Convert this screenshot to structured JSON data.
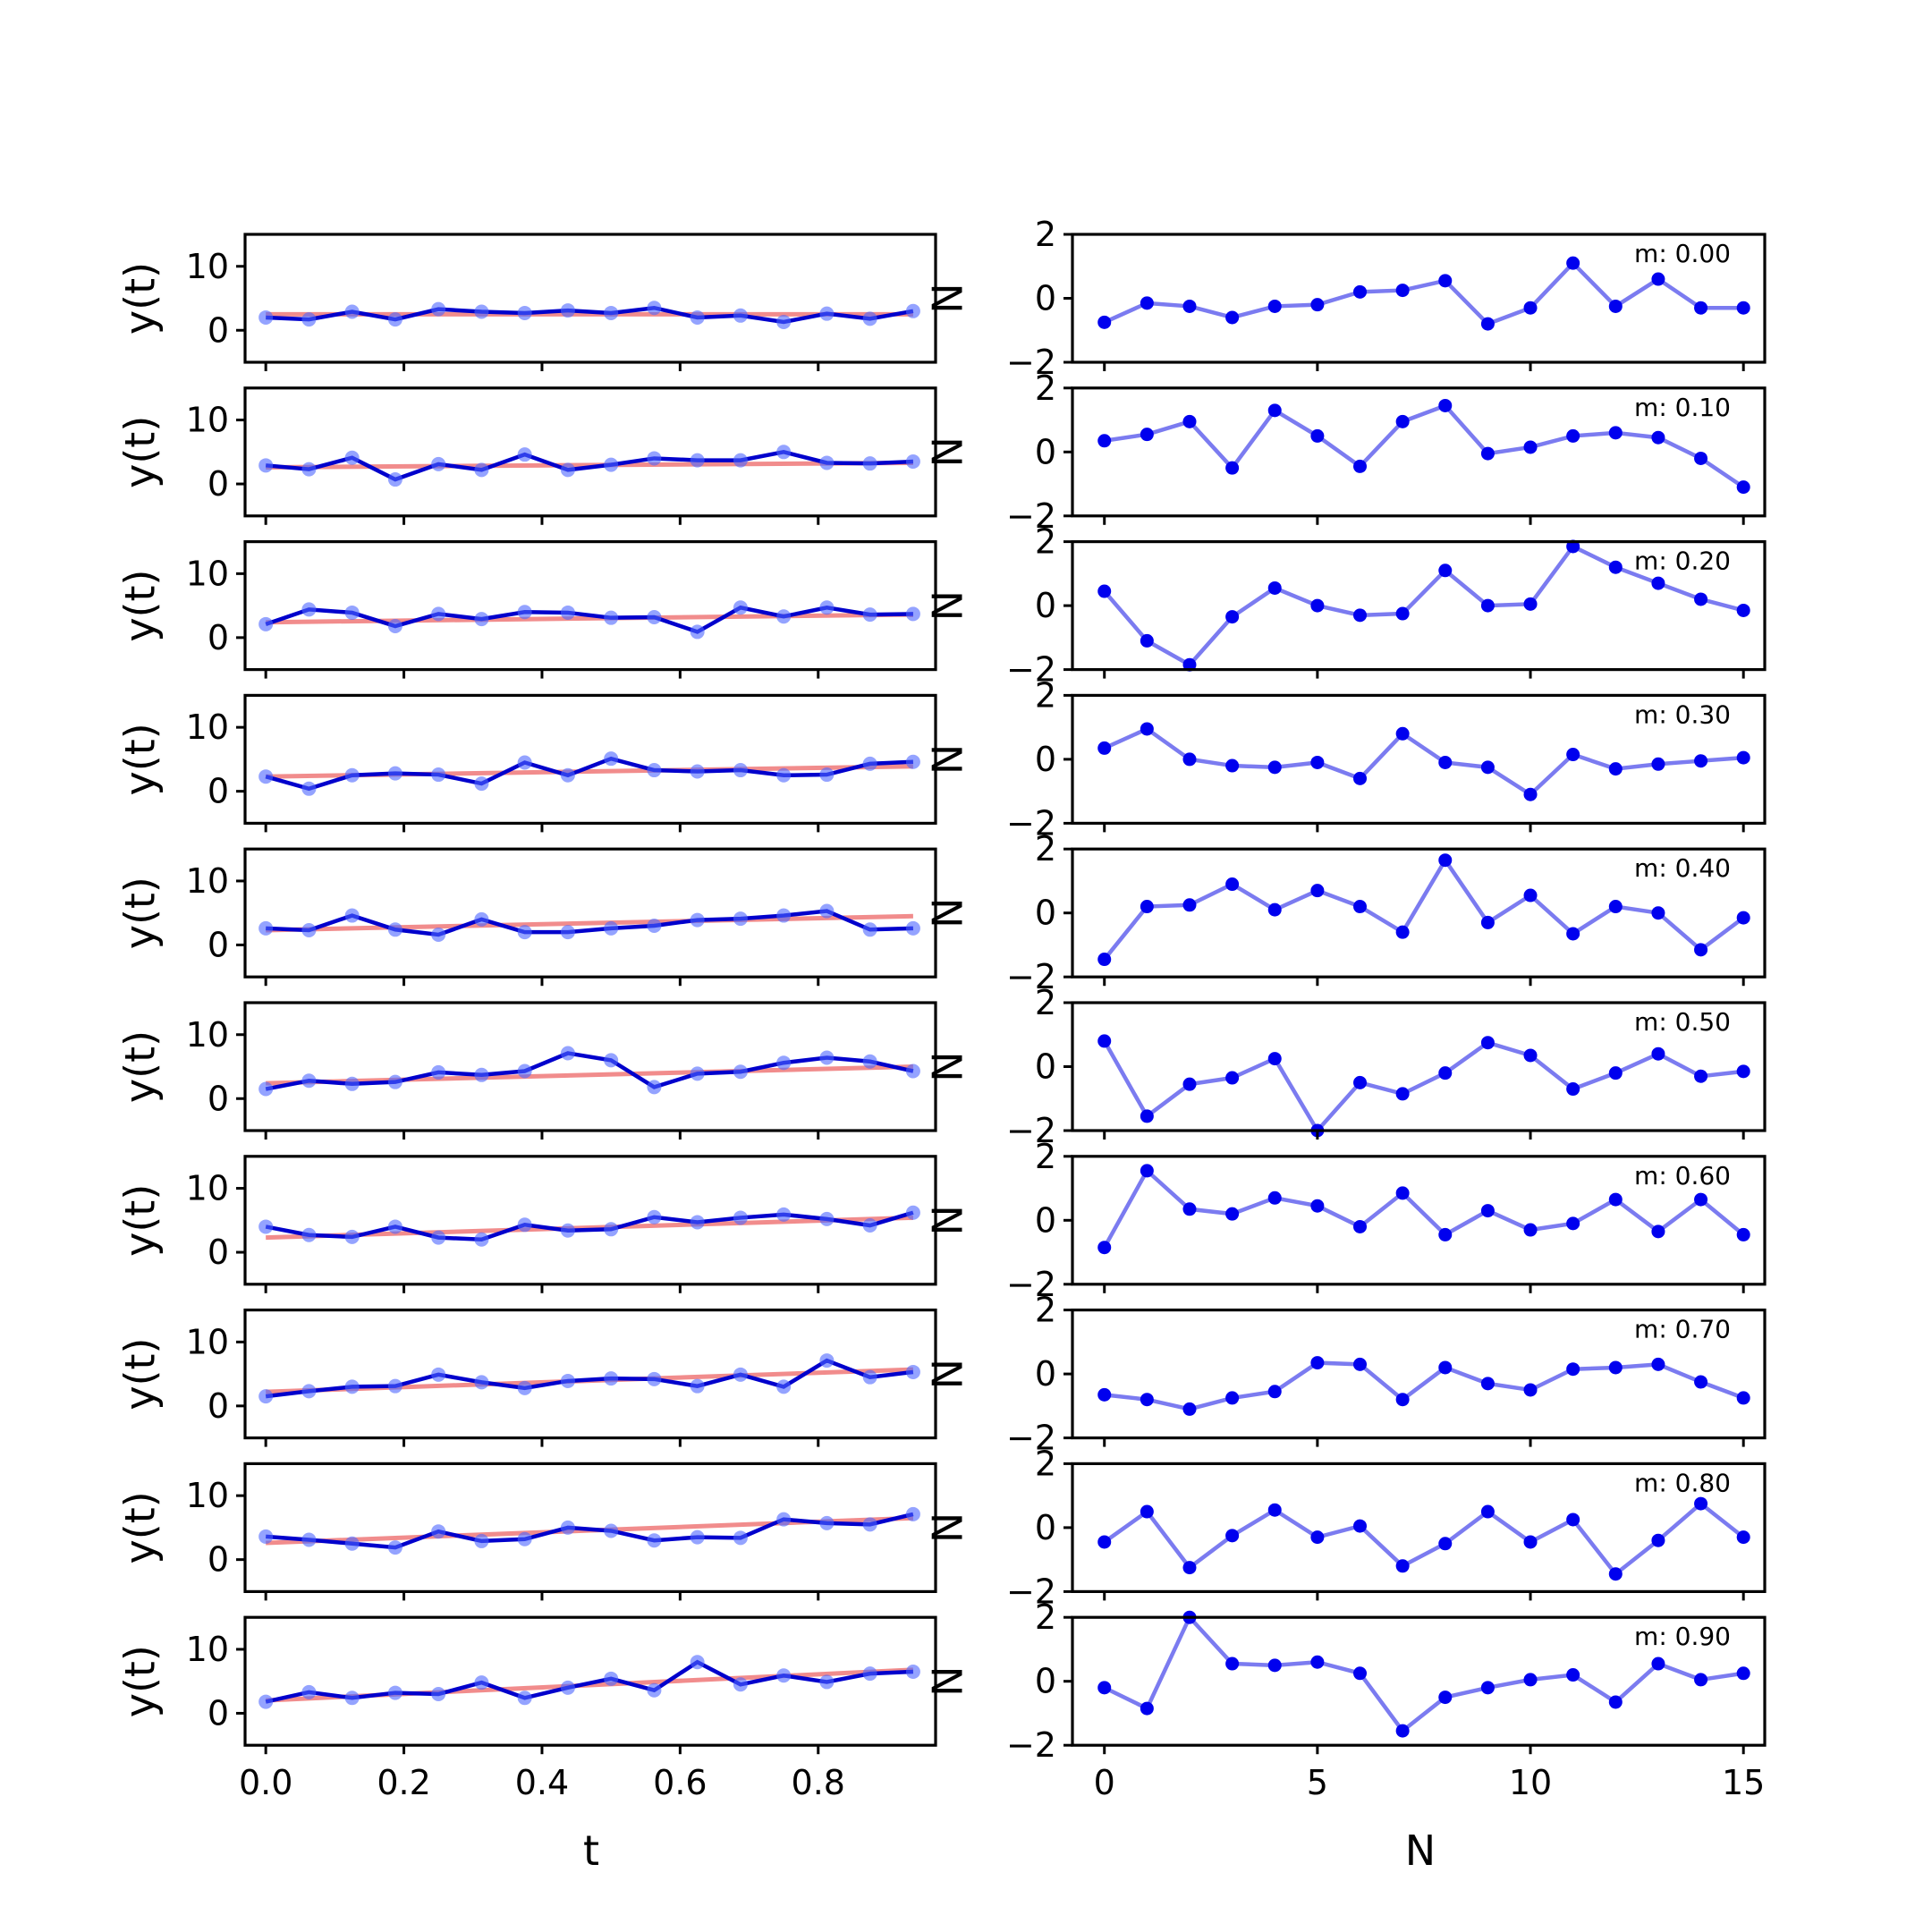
{
  "chart_data": [
    {
      "panel": "left",
      "type": "line",
      "xlabel": "t",
      "ylabel": "y(t)",
      "ylim": [
        -5,
        15
      ],
      "yticks": [
        "0",
        "10"
      ],
      "xlim": [
        -0.03,
        0.97
      ],
      "xticks": [
        "0.0",
        "0.2",
        "0.4",
        "0.6",
        "0.8"
      ],
      "x": [
        0.0,
        0.0625,
        0.125,
        0.1875,
        0.25,
        0.3125,
        0.375,
        0.4375,
        0.5,
        0.5625,
        0.625,
        0.6875,
        0.75,
        0.8125,
        0.875,
        0.9375
      ],
      "colors": {
        "data": "#0000cc",
        "markers": "#4d66ff",
        "fit": "#f08080"
      },
      "rows": [
        {
          "y": [
            2.0,
            1.7,
            2.9,
            1.7,
            3.3,
            2.9,
            2.7,
            3.1,
            2.7,
            3.5,
            2.0,
            2.3,
            1.3,
            2.6,
            1.8,
            3.0
          ],
          "fit": [
            2.5,
            2.5
          ]
        },
        {
          "y": [
            2.9,
            2.3,
            4.1,
            0.7,
            3.1,
            2.2,
            4.6,
            2.2,
            3.0,
            4.0,
            3.7,
            3.7,
            5.0,
            3.3,
            3.2,
            3.5
          ],
          "fit": [
            2.6,
            3.3
          ]
        },
        {
          "y": [
            2.1,
            4.4,
            3.9,
            1.8,
            3.7,
            2.9,
            4.0,
            3.9,
            3.1,
            3.2,
            0.9,
            4.7,
            3.3,
            4.7,
            3.6,
            3.7
          ],
          "fit": [
            2.4,
            3.6
          ]
        },
        {
          "y": [
            2.3,
            0.4,
            2.5,
            2.8,
            2.6,
            1.2,
            4.5,
            2.5,
            5.1,
            3.3,
            3.1,
            3.3,
            2.5,
            2.6,
            4.3,
            4.6
          ],
          "fit": [
            2.3,
            3.9
          ]
        },
        {
          "y": [
            2.6,
            2.3,
            4.6,
            2.4,
            1.6,
            4.0,
            2.0,
            2.0,
            2.6,
            3.0,
            3.9,
            4.1,
            4.6,
            5.3,
            2.4,
            2.6
          ],
          "fit": [
            2.3,
            4.5
          ]
        },
        {
          "y": [
            1.5,
            2.8,
            2.3,
            2.6,
            4.1,
            3.7,
            4.3,
            7.1,
            6.0,
            1.8,
            3.9,
            4.2,
            5.6,
            6.4,
            5.8,
            4.3
          ],
          "fit": [
            2.4,
            5.0
          ]
        },
        {
          "y": [
            4.0,
            2.7,
            2.4,
            4.0,
            2.3,
            2.0,
            4.3,
            3.4,
            3.6,
            5.5,
            4.7,
            5.4,
            5.9,
            5.2,
            4.2,
            6.2
          ],
          "fit": [
            2.3,
            5.4
          ]
        },
        {
          "y": [
            1.5,
            2.3,
            3.0,
            3.1,
            4.9,
            3.7,
            2.8,
            3.9,
            4.3,
            4.2,
            3.1,
            4.9,
            3.0,
            7.1,
            4.5,
            5.3
          ],
          "fit": [
            2.2,
            5.7
          ]
        },
        {
          "y": [
            3.6,
            3.1,
            2.5,
            1.9,
            4.4,
            2.9,
            3.2,
            5.0,
            4.5,
            3.0,
            3.5,
            3.4,
            6.3,
            5.7,
            5.5,
            7.1
          ],
          "fit": [
            2.6,
            6.5
          ]
        },
        {
          "y": [
            1.8,
            3.3,
            2.4,
            3.2,
            3.0,
            4.8,
            2.4,
            4.0,
            5.4,
            3.6,
            8.0,
            4.5,
            5.9,
            4.9,
            6.2,
            6.5
          ],
          "fit": [
            2.0,
            6.8
          ]
        }
      ],
      "stray_text": "N"
    },
    {
      "panel": "right",
      "type": "line",
      "xlabel": "N",
      "ylim": [
        -2,
        2
      ],
      "yticks": [
        "2",
        "0",
        "−2"
      ],
      "xlim": [
        -0.75,
        15.5
      ],
      "xticks": [
        "0",
        "5",
        "10",
        "15"
      ],
      "x": [
        0,
        1,
        2,
        3,
        4,
        5,
        6,
        7,
        8,
        9,
        10,
        11,
        12,
        13,
        14,
        15
      ],
      "colors": {
        "line": "#7b7bf0",
        "markers": "#0000ee"
      },
      "rows": [
        {
          "label": "m: 0.00",
          "y": [
            -0.75,
            -0.15,
            -0.25,
            -0.6,
            -0.25,
            -0.2,
            0.2,
            0.25,
            0.55,
            -0.8,
            -0.3,
            1.1,
            -0.25,
            0.6,
            -0.3,
            -0.3
          ]
        },
        {
          "label": "m: 0.10",
          "y": [
            0.35,
            0.55,
            0.95,
            -0.5,
            1.3,
            0.5,
            -0.45,
            0.95,
            1.45,
            -0.05,
            0.15,
            0.5,
            0.6,
            0.45,
            -0.2,
            -1.1
          ]
        },
        {
          "label": "m: 0.20",
          "y": [
            0.45,
            -1.1,
            -1.85,
            -0.35,
            0.55,
            0.0,
            -0.3,
            -0.25,
            1.1,
            0.0,
            0.05,
            1.85,
            1.2,
            0.7,
            0.2,
            -0.15
          ]
        },
        {
          "label": "m: 0.30",
          "y": [
            0.35,
            0.95,
            0.0,
            -0.2,
            -0.25,
            -0.1,
            -0.6,
            0.8,
            -0.1,
            -0.25,
            -1.1,
            0.15,
            -0.3,
            -0.15,
            -0.05,
            0.05
          ]
        },
        {
          "label": "m: 0.40",
          "y": [
            -1.45,
            0.2,
            0.25,
            0.9,
            0.1,
            0.7,
            0.2,
            -0.6,
            1.65,
            -0.3,
            0.55,
            -0.65,
            0.2,
            0.0,
            -1.15,
            -0.15
          ]
        },
        {
          "label": "m: 0.50",
          "y": [
            0.8,
            -1.55,
            -0.55,
            -0.35,
            0.25,
            -2.0,
            -0.5,
            -0.85,
            -0.2,
            0.75,
            0.35,
            -0.7,
            -0.2,
            0.4,
            -0.3,
            -0.15
          ]
        },
        {
          "label": "m: 0.60",
          "y": [
            -0.85,
            1.55,
            0.35,
            0.2,
            0.7,
            0.45,
            -0.2,
            0.85,
            -0.45,
            0.3,
            -0.3,
            -0.1,
            0.65,
            -0.35,
            0.65,
            -0.45
          ]
        },
        {
          "label": "m: 0.70",
          "y": [
            -0.65,
            -0.8,
            -1.1,
            -0.75,
            -0.55,
            0.35,
            0.3,
            -0.8,
            0.2,
            -0.3,
            -0.5,
            0.15,
            0.2,
            0.3,
            -0.25,
            -0.75
          ]
        },
        {
          "label": "m: 0.80",
          "y": [
            -0.45,
            0.5,
            -1.25,
            -0.25,
            0.55,
            -0.3,
            0.05,
            -1.2,
            -0.5,
            0.5,
            -0.45,
            0.25,
            -1.45,
            -0.4,
            0.75,
            -0.3
          ]
        },
        {
          "label": "m: 0.90",
          "y": [
            -0.2,
            -0.85,
            2.0,
            0.55,
            0.5,
            0.6,
            0.25,
            -1.55,
            -0.5,
            -0.2,
            0.05,
            0.2,
            -0.65,
            0.55,
            0.05,
            0.25
          ]
        }
      ]
    }
  ]
}
